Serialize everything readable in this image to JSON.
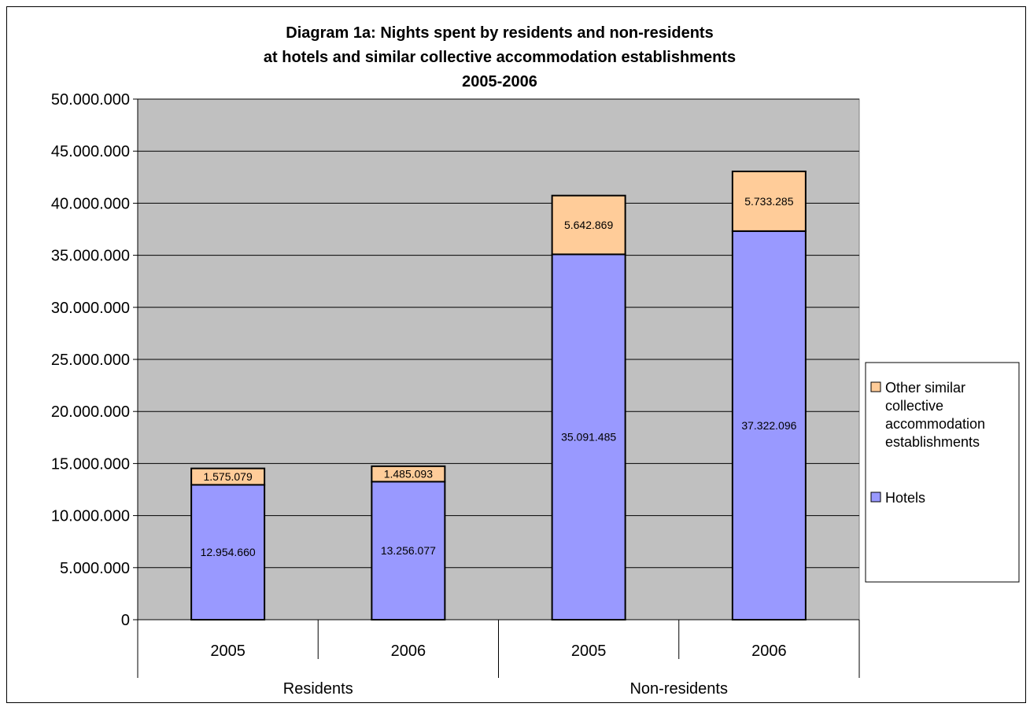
{
  "chart_data": {
    "type": "bar",
    "stacked": true,
    "title": [
      "Diagram 1a:  Nights spent by residents and non-residents",
      "at hotels and similar collective accommodation establishments",
      "2005-2006"
    ],
    "groups": [
      {
        "label": "Residents",
        "categories": [
          "2005",
          "2006"
        ]
      },
      {
        "label": "Non-residents",
        "categories": [
          "2005",
          "2006"
        ]
      }
    ],
    "series": [
      {
        "name": "Hotels",
        "color": "#9999ff",
        "values": [
          12954660,
          13256077,
          35091485,
          37322096
        ],
        "labels": [
          "12.954.660",
          "13.256.077",
          "35.091.485",
          "37.322.096"
        ]
      },
      {
        "name": "Other similar collective accommodation establishments",
        "legend_lines": [
          "Other similar",
          "collective",
          "accommodation",
          "establishments"
        ],
        "color": "#ffcc99",
        "values": [
          1575079,
          1485093,
          5642869,
          5733285
        ],
        "labels": [
          "1.575.079",
          "1.485.093",
          "5.642.869",
          "5.733.285"
        ]
      }
    ],
    "ylim": [
      0,
      50000000
    ],
    "yticks": [
      {
        "value": 0,
        "label": "0"
      },
      {
        "value": 5000000,
        "label": "5.000.000"
      },
      {
        "value": 10000000,
        "label": "10.000.000"
      },
      {
        "value": 15000000,
        "label": "15.000.000"
      },
      {
        "value": 20000000,
        "label": "20.000.000"
      },
      {
        "value": 25000000,
        "label": "25.000.000"
      },
      {
        "value": 30000000,
        "label": "30.000.000"
      },
      {
        "value": 35000000,
        "label": "35.000.000"
      },
      {
        "value": 40000000,
        "label": "40.000.000"
      },
      {
        "value": 45000000,
        "label": "45.000.000"
      },
      {
        "value": 50000000,
        "label": "50.000.000"
      }
    ],
    "grid": true,
    "plot_background": "#c0c0c0",
    "legend_position": "right"
  }
}
